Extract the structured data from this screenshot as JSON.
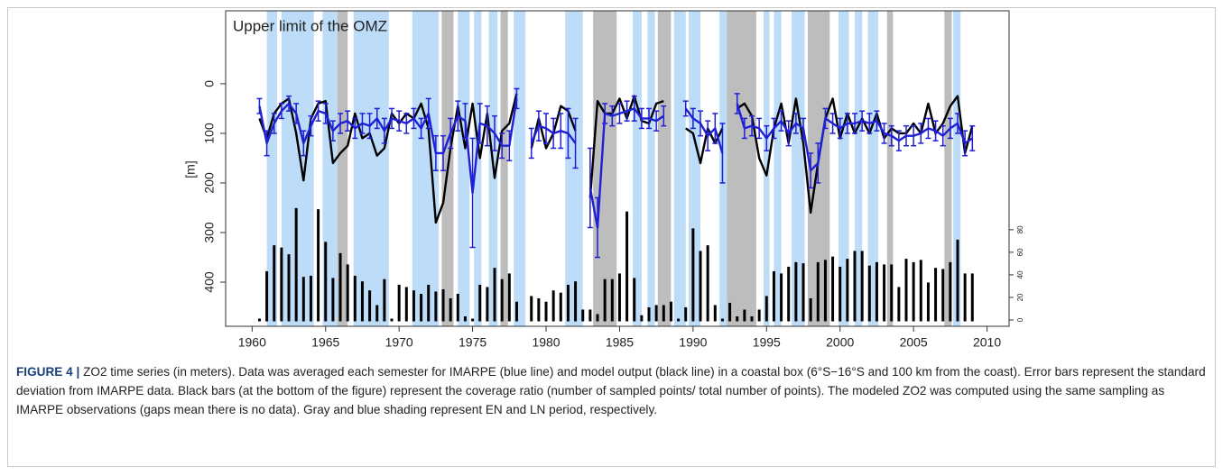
{
  "chart_data": {
    "type": "line",
    "title": "Upper limit of the OMZ",
    "y_label": "[m]",
    "x": [
      1960.5,
      1961,
      1961.5,
      1962,
      1962.5,
      1963,
      1963.5,
      1964,
      1964.5,
      1965,
      1965.5,
      1966,
      1966.5,
      1967,
      1967.5,
      1968,
      1968.5,
      1969,
      1969.5,
      1970,
      1970.5,
      1971,
      1971.5,
      1972,
      1972.5,
      1973,
      1973.5,
      1974,
      1974.5,
      1975,
      1975.5,
      1976,
      1976.5,
      1977,
      1977.5,
      1978,
      1978.5,
      1979,
      1979.5,
      1980,
      1980.5,
      1981,
      1981.5,
      1982,
      1982.5,
      1983,
      1983.5,
      1984,
      1984.5,
      1985,
      1985.5,
      1986,
      1986.5,
      1987,
      1987.5,
      1988,
      1988.5,
      1989,
      1989.5,
      1990,
      1990.5,
      1991,
      1991.5,
      1992,
      1992.5,
      1993,
      1993.5,
      1994,
      1994.5,
      1995,
      1995.5,
      1996,
      1996.5,
      1997,
      1997.5,
      1998,
      1998.5,
      1999,
      1999.5,
      2000,
      2000.5,
      2001,
      2001.5,
      2002,
      2002.5,
      2003,
      2003.5,
      2004,
      2004.5,
      2005,
      2005.5,
      2006,
      2006.5,
      2007,
      2007.5,
      2008,
      2008.5,
      2009
    ],
    "xlim": [
      1958.2,
      2011.5
    ],
    "xticks": [
      1960,
      1965,
      1970,
      1975,
      1980,
      1985,
      1990,
      1995,
      2000,
      2005,
      2010
    ],
    "ylim": [
      -147,
      489
    ],
    "y_reversed": true,
    "yticks": [
      0,
      100,
      200,
      300,
      400
    ],
    "y2lim": [
      -5.6,
      274
    ],
    "y2ticks": [
      0,
      20,
      40,
      60,
      80
    ],
    "series": [
      {
        "color": "#1f1fd6",
        "values": [
          45,
          120,
          80,
          55,
          40,
          60,
          120,
          85,
          55,
          60,
          95,
          80,
          75,
          90,
          80,
          85,
          70,
          95,
          70,
          75,
          80,
          70,
          90,
          60,
          140,
          140,
          100,
          65,
          75,
          220,
          80,
          85,
          100,
          125,
          125,
          30,
          null,
          120,
          85,
          90,
          100,
          95,
          100,
          120,
          null,
          210,
          290,
          60,
          65,
          60,
          55,
          50,
          70,
          70,
          75,
          65,
          null,
          null,
          50,
          70,
          80,
          105,
          90,
          140,
          null,
          40,
          90,
          85,
          90,
          110,
          90,
          75,
          100,
          80,
          90,
          175,
          160,
          70,
          80,
          90,
          80,
          80,
          75,
          80,
          75,
          100,
          105,
          115,
          105,
          105,
          100,
          90,
          95,
          105,
          90,
          80,
          120,
          110
        ],
        "errors": [
          15,
          25,
          20,
          15,
          15,
          20,
          25,
          20,
          20,
          20,
          20,
          20,
          20,
          20,
          20,
          25,
          20,
          25,
          20,
          20,
          20,
          20,
          20,
          30,
          35,
          35,
          30,
          30,
          35,
          110,
          40,
          40,
          35,
          25,
          30,
          20,
          null,
          30,
          30,
          30,
          30,
          35,
          50,
          50,
          null,
          80,
          60,
          20,
          20,
          20,
          20,
          25,
          20,
          20,
          20,
          20,
          null,
          null,
          15,
          20,
          25,
          30,
          30,
          60,
          null,
          20,
          20,
          20,
          20,
          25,
          20,
          20,
          25,
          20,
          20,
          35,
          40,
          20,
          20,
          20,
          20,
          20,
          20,
          20,
          20,
          20,
          20,
          20,
          20,
          20,
          20,
          20,
          20,
          20,
          20,
          20,
          25,
          25
        ]
      },
      {
        "color": "#000000",
        "values": [
          70,
          110,
          60,
          40,
          30,
          100,
          195,
          70,
          40,
          35,
          160,
          140,
          125,
          60,
          110,
          100,
          145,
          130,
          60,
          80,
          60,
          70,
          40,
          90,
          280,
          240,
          130,
          45,
          130,
          40,
          150,
          60,
          190,
          95,
          80,
          20,
          null,
          130,
          70,
          130,
          100,
          45,
          55,
          95,
          null,
          230,
          35,
          60,
          60,
          30,
          70,
          25,
          75,
          80,
          40,
          35,
          null,
          null,
          90,
          100,
          160,
          90,
          120,
          90,
          null,
          50,
          40,
          65,
          150,
          185,
          90,
          40,
          120,
          30,
          120,
          260,
          160,
          70,
          30,
          110,
          60,
          100,
          70,
          100,
          60,
          110,
          90,
          100,
          100,
          80,
          100,
          40,
          100,
          80,
          45,
          25,
          140,
          85
        ]
      },
      {
        "type": "bar",
        "axis": "y2",
        "color": "#000000",
        "values": [
          0,
          42,
          65,
          63,
          57,
          98,
          37,
          38,
          97,
          68,
          36,
          58,
          48,
          38,
          33,
          25,
          12,
          35,
          0,
          30,
          28,
          25,
          22,
          30,
          24,
          26,
          18,
          22,
          2,
          0,
          30,
          28,
          45,
          35,
          40,
          15,
          null,
          20,
          18,
          15,
          25,
          23,
          30,
          33,
          8,
          8,
          4,
          35,
          35,
          40,
          95,
          36,
          3,
          10,
          12,
          12,
          15,
          0,
          10,
          80,
          60,
          65,
          12,
          0,
          14,
          2,
          8,
          2,
          8,
          20,
          42,
          40,
          46,
          50,
          49,
          18,
          50,
          52,
          55,
          46,
          53,
          60,
          60,
          47,
          50,
          48,
          48,
          28,
          53,
          50,
          52,
          32,
          45,
          44,
          50,
          70,
          40,
          40
        ]
      }
    ],
    "shading": [
      {
        "color": "#bcdcf7",
        "spans": [
          [
            1961.0,
            1961.7
          ],
          [
            1962.0,
            1964.2
          ],
          [
            1964.8,
            1965.8
          ],
          [
            1966.9,
            1969.3
          ],
          [
            1970.9,
            1972.7
          ],
          [
            1974.0,
            1974.8
          ],
          [
            1975.1,
            1975.6
          ],
          [
            1976.1,
            1976.7
          ],
          [
            1977.8,
            1978.6
          ],
          [
            1981.3,
            1982.5
          ],
          [
            1985.9,
            1986.5
          ],
          [
            1986.9,
            1987.4
          ],
          [
            1988.7,
            1989.5
          ],
          [
            1989.7,
            1990.5
          ],
          [
            1991.8,
            1992.3
          ],
          [
            1994.8,
            1995.2
          ],
          [
            1995.5,
            1996.0
          ],
          [
            1996.7,
            1997.6
          ],
          [
            1999.9,
            2000.6
          ],
          [
            2001.0,
            2001.5
          ],
          [
            2001.9,
            2002.6
          ],
          [
            2007.7,
            2008.2
          ]
        ]
      },
      {
        "color": "#bdbdbd",
        "spans": [
          [
            1965.8,
            1966.5
          ],
          [
            1972.9,
            1973.7
          ],
          [
            1976.9,
            1977.4
          ],
          [
            1983.2,
            1984.8
          ],
          [
            1987.6,
            1988.5
          ],
          [
            1992.3,
            1994.3
          ],
          [
            1997.8,
            1999.3
          ],
          [
            2003.2,
            2003.6
          ],
          [
            2007.1,
            2007.6
          ]
        ]
      }
    ]
  },
  "caption": {
    "label": "FIGURE 4 |",
    "text": "ZO2 time series (in meters). Data was averaged each semester for IMARPE (blue line) and model output (black line) in a coastal box (6°S−16°S and 100 km from the coast). Error bars represent the standard deviation from IMARPE data. Black bars (at the bottom of the figure) represent the coverage ratio (number of sampled points/ total number of points). The modeled ZO2 was computed using the same sampling as IMARPE observations (gaps mean there is no data). Gray and blue shading represent EN and LN period, respectively."
  }
}
